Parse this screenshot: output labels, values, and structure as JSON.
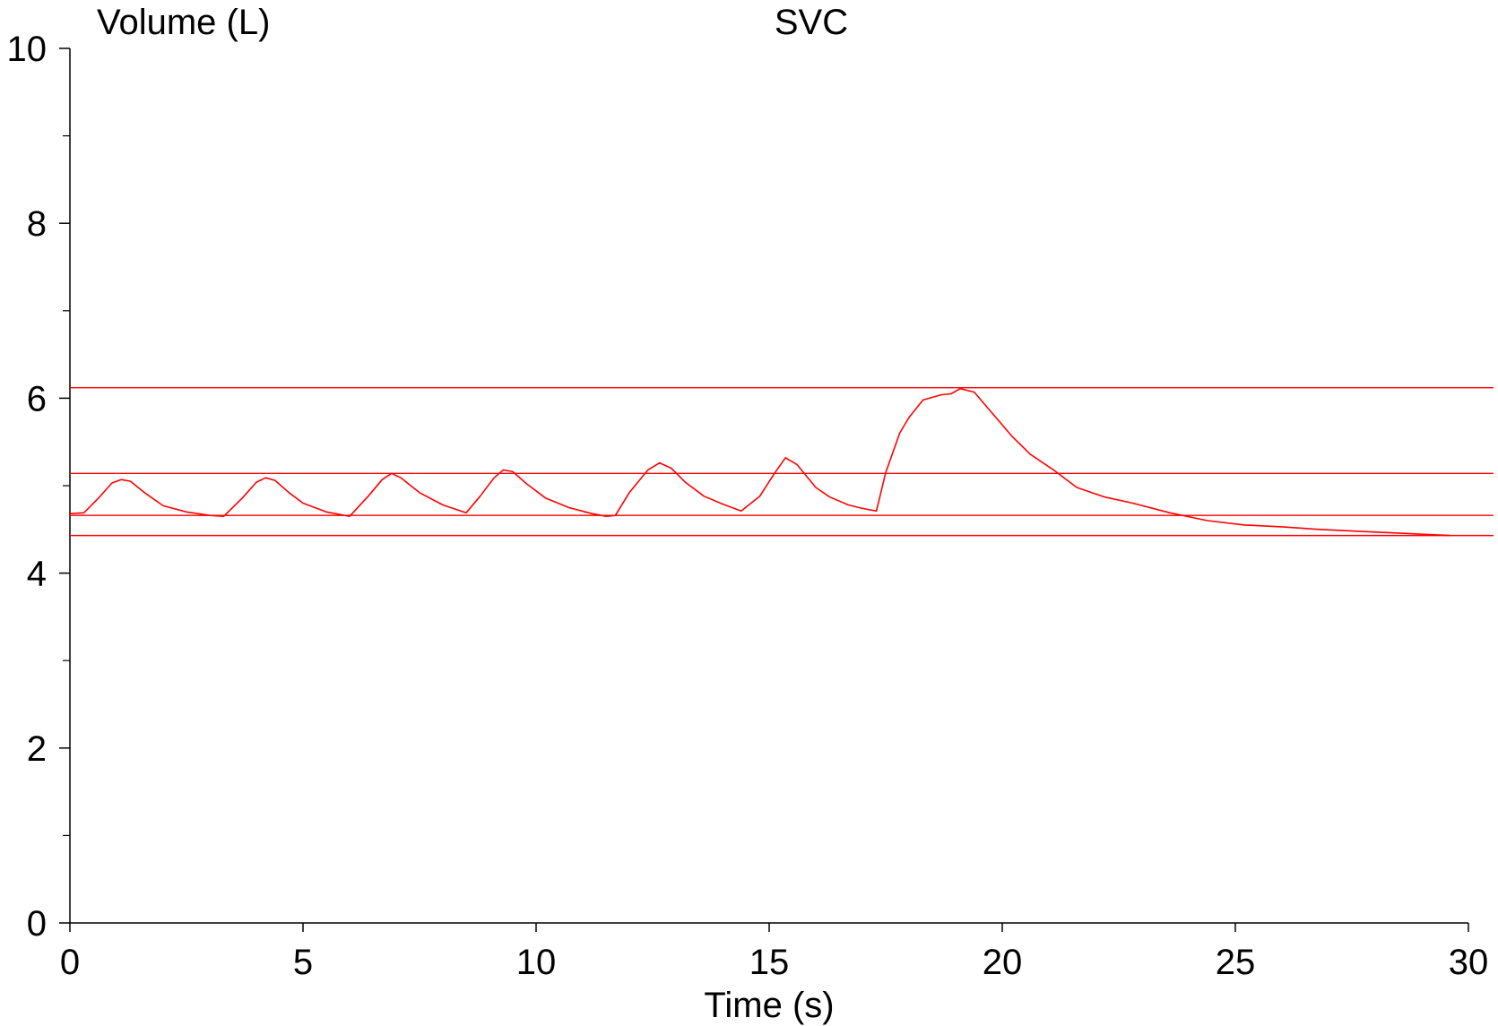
{
  "chart_data": {
    "type": "line",
    "title": "SVC",
    "xlabel": "Time (s)",
    "ylabel": "Volume (L)",
    "xlim": [
      0,
      30
    ],
    "ylim": [
      0,
      10
    ],
    "x_ticks": [
      0,
      5,
      10,
      15,
      20,
      25,
      30
    ],
    "x_tick_labels": [
      "0",
      "5",
      "10",
      "15",
      "20",
      "25",
      "30"
    ],
    "y_major_ticks": [
      0,
      2,
      4,
      6,
      8,
      10
    ],
    "y_tick_labels": [
      "0",
      "2",
      "4",
      "6",
      "8",
      "10"
    ],
    "y_minor_ticks": [
      1,
      3,
      5,
      7,
      9
    ],
    "grid": false,
    "line_color": "#ff0000",
    "reference_lines": [
      6.12,
      5.14,
      4.66,
      4.43
    ],
    "series": [
      {
        "x": [
          0,
          0.3,
          0.6,
          0.9,
          1.1,
          1.3,
          1.6,
          2.0,
          2.5,
          3.0,
          3.3,
          3.7,
          4.0,
          4.2,
          4.4,
          4.7,
          5.0,
          5.5,
          6.0,
          6.4,
          6.7,
          6.9,
          7.1,
          7.5,
          8.0,
          8.5,
          8.8,
          9.1,
          9.3,
          9.5,
          9.8,
          10.2,
          10.7,
          11.2,
          11.5,
          11.7,
          12.0,
          12.4,
          12.65,
          12.9,
          13.2,
          13.6,
          14.0,
          14.4,
          14.8,
          15.1,
          15.35,
          15.6,
          16.0,
          16.3,
          16.7,
          17.0,
          17.3,
          17.5,
          17.8,
          18.0,
          18.3,
          18.7,
          18.9,
          19.1,
          19.4,
          19.8,
          20.2,
          20.6,
          21.1,
          21.6,
          22.2,
          22.8,
          23.6,
          24.4,
          25.2,
          26.0,
          26.8,
          27.6,
          28.4,
          29.2,
          29.6
        ],
        "values": [
          4.68,
          4.69,
          4.85,
          5.03,
          5.07,
          5.05,
          4.92,
          4.77,
          4.7,
          4.66,
          4.65,
          4.86,
          5.04,
          5.09,
          5.06,
          4.92,
          4.8,
          4.7,
          4.65,
          4.88,
          5.07,
          5.14,
          5.09,
          4.92,
          4.78,
          4.69,
          4.88,
          5.09,
          5.18,
          5.16,
          5.02,
          4.86,
          4.75,
          4.68,
          4.65,
          4.66,
          4.92,
          5.18,
          5.26,
          5.2,
          5.04,
          4.88,
          4.79,
          4.71,
          4.88,
          5.13,
          5.32,
          5.24,
          4.98,
          4.87,
          4.78,
          4.74,
          4.71,
          5.15,
          5.6,
          5.78,
          5.98,
          6.04,
          6.05,
          6.11,
          6.07,
          5.82,
          5.57,
          5.36,
          5.18,
          4.98,
          4.87,
          4.8,
          4.69,
          4.6,
          4.55,
          4.53,
          4.5,
          4.48,
          4.46,
          4.44,
          4.43
        ]
      }
    ]
  }
}
